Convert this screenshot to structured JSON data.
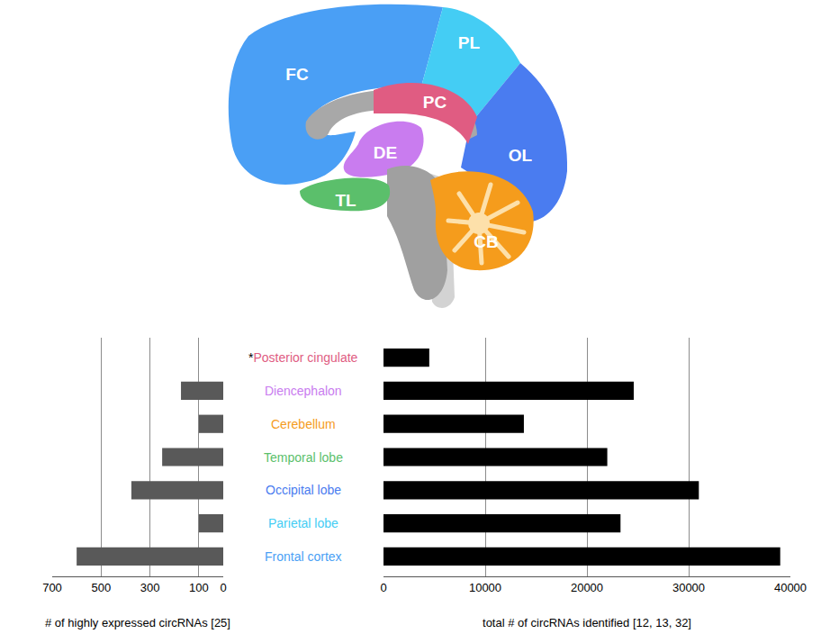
{
  "diagram": {
    "regions": [
      {
        "label": "PC",
        "color": "#e05c82"
      },
      {
        "label": "DE",
        "color": "#c97cef"
      },
      {
        "label": "CB",
        "color": "#f59c1c"
      },
      {
        "label": "TL",
        "color": "#5bbf6b"
      },
      {
        "label": "OL",
        "color": "#4a7cf0"
      },
      {
        "label": "PL",
        "color": "#44cdf4"
      },
      {
        "label": "FC",
        "color": "#4a9ff5"
      }
    ]
  },
  "chart_data": [
    {
      "type": "bar",
      "orientation": "horizontal",
      "x_label": "# of highly expressed circRNAs [25]",
      "categories": [
        "*Posterior cingulate",
        "Diencephalon",
        "Cerebellum",
        "Temporal lobe",
        "Occipital lobe",
        "Parietal lobe",
        "Frontal cortex"
      ],
      "values": [
        null,
        173,
        100,
        250,
        376,
        100,
        600
      ],
      "color": "#595959",
      "xlim": [
        700,
        0
      ],
      "xticks": [
        700,
        500,
        300,
        100,
        0
      ],
      "grid": true
    },
    {
      "type": "bar",
      "orientation": "horizontal",
      "x_label": "total # of circRNAs identified [12, 13, 32]",
      "categories": [
        "*Posterior cingulate",
        "Diencephalon",
        "Cerebellum",
        "Temporal lobe",
        "Occipital lobe",
        "Parietal lobe",
        "Frontal cortex"
      ],
      "values": [
        4500,
        24600,
        13800,
        22000,
        31000,
        23300,
        39000
      ],
      "color": "#000000",
      "xlim": [
        0,
        40000
      ],
      "xticks": [
        0,
        10000,
        20000,
        30000,
        40000
      ],
      "grid": true
    }
  ]
}
